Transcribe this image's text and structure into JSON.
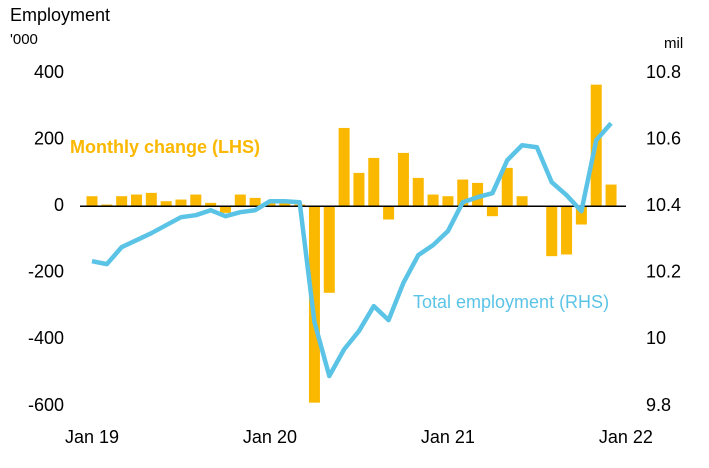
{
  "chart_data": {
    "type": "bar_line",
    "y_label": "Employment",
    "y_unit": "'000",
    "y2_unit": "mil",
    "categories": [
      "Jan 19",
      null,
      null,
      null,
      null,
      null,
      null,
      null,
      null,
      null,
      null,
      null,
      "Jan 20",
      null,
      null,
      null,
      null,
      null,
      null,
      null,
      null,
      null,
      null,
      null,
      "Jan 21",
      null,
      null,
      null,
      null,
      null,
      null,
      null,
      null,
      null,
      null,
      null,
      "Jan 22"
    ],
    "series": [
      {
        "name": "Monthly change (LHS)",
        "color": "#fbb800",
        "kind": "bar",
        "values": [
          30,
          5,
          30,
          35,
          40,
          15,
          20,
          35,
          10,
          -20,
          35,
          25,
          10,
          20,
          5,
          -590,
          -260,
          235,
          100,
          145,
          -40,
          160,
          85,
          35,
          30,
          80,
          70,
          -30,
          115,
          30,
          0,
          -150,
          -145,
          -55,
          365,
          65,
          null
        ]
      },
      {
        "name": "Total employment (RHS)",
        "color": "#5bc4e6",
        "kind": "line",
        "axis": "y2",
        "values": [
          10.235,
          10.226,
          10.277,
          10.298,
          10.319,
          10.343,
          10.367,
          10.373,
          10.388,
          10.37,
          10.382,
          10.388,
          10.415,
          10.415,
          10.412,
          10.052,
          9.89,
          9.97,
          10.025,
          10.1,
          10.058,
          10.17,
          10.253,
          10.283,
          10.325,
          10.412,
          10.427,
          10.439,
          10.538,
          10.583,
          10.577,
          10.472,
          10.433,
          10.385,
          10.598,
          10.649,
          null
        ]
      }
    ],
    "ylim": [
      -600,
      400
    ],
    "yticks": [
      -600,
      -400,
      -200,
      0,
      200,
      400
    ],
    "y2lim": [
      9.8,
      10.8
    ],
    "y2ticks": [
      9.8,
      10,
      10.2,
      10.4,
      10.6,
      10.8
    ]
  }
}
